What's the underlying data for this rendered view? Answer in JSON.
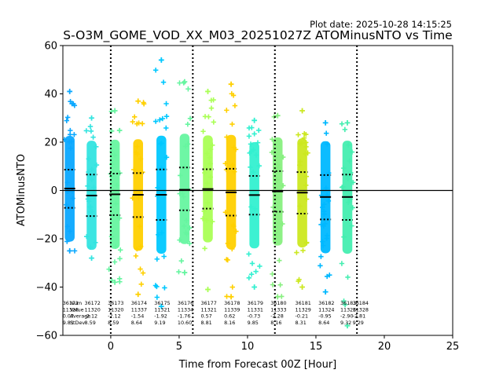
{
  "chart_data": {
    "type": "scatter",
    "title": "S-O3M_GOME_VOD_XX_M03_20251027Z ATOMinusNTO vs Time",
    "plot_date": "Plot date: 2025-10-28 14:15:25",
    "xlabel": "Time from Forecast 00Z [Hour]",
    "ylabel": "ATOMinusNTO",
    "xlim": [
      -3.5,
      25
    ],
    "ylim": [
      -60,
      60
    ],
    "xticks": [
      0,
      5,
      10,
      15,
      20,
      25
    ],
    "yticks": [
      -60,
      -40,
      -20,
      0,
      20,
      40,
      60
    ],
    "xtick_labels": [
      "0",
      "5",
      "10",
      "15",
      "20",
      "25"
    ],
    "ytick_labels": [
      "−60",
      "−40",
      "−20",
      "0",
      "20",
      "40",
      "60"
    ],
    "vlines": [
      0,
      6,
      12,
      18
    ],
    "hline": 0,
    "grid": false,
    "stats_row_labels": [
      "Num",
      "Value",
      "Average",
      "StDev"
    ],
    "bins": [
      {
        "x": -3.0,
        "id": "36171",
        "num": "11328",
        "avg": "0.07",
        "stdev": "9.81",
        "mean": 0.8,
        "sd_hi": 8.6,
        "sd_lo": -7.2,
        "min": -25,
        "max": 41,
        "color": "#0aa8ff"
      },
      {
        "x": -1.4,
        "id": "36172",
        "num": "11320",
        "avg": "-2.12",
        "stdev": "8.59",
        "mean": -2.1,
        "sd_hi": 6.6,
        "sd_lo": -10.6,
        "min": -28,
        "max": 30,
        "color": "#33e4e0"
      },
      {
        "x": 0.3,
        "id": "36173",
        "num": "11320",
        "avg": "-2.12",
        "stdev": "8.59",
        "mean": -1.6,
        "sd_hi": 7.0,
        "sd_lo": -10.2,
        "min": -38,
        "max": 33,
        "color": "#66f5a0"
      },
      {
        "x": 2.0,
        "id": "36174",
        "num": "11337",
        "avg": "-1.54",
        "stdev": "8.64",
        "mean": -1.8,
        "sd_hi": 7.2,
        "sd_lo": -11.0,
        "min": -43,
        "max": 37,
        "color": "#ffd000"
      },
      {
        "x": 3.7,
        "id": "36175",
        "num": "11321",
        "avg": "-1.92",
        "stdev": "9.19",
        "mean": -1.8,
        "sd_hi": 8.7,
        "sd_lo": -12.2,
        "min": -48,
        "max": 54,
        "color": "#00c8ff"
      },
      {
        "x": 5.4,
        "id": "36176",
        "num": "11334",
        "avg": "-1.76",
        "stdev": "10.60",
        "mean": 0.3,
        "sd_hi": 9.5,
        "sd_lo": -8.2,
        "min": -34,
        "max": 45,
        "color": "#66f5a0"
      },
      {
        "x": 7.1,
        "id": "36177",
        "num": "11321",
        "avg": "0.57",
        "stdev": "8.81",
        "mean": 0.6,
        "sd_hi": 8.8,
        "sd_lo": -7.5,
        "min": -41,
        "max": 41,
        "color": "#aaff55"
      },
      {
        "x": 8.8,
        "id": "36178",
        "num": "11339",
        "avg": "0.62",
        "stdev": "8.16",
        "mean": -0.8,
        "sd_hi": 9.0,
        "sd_lo": -10.4,
        "min": -44,
        "max": 44,
        "color": "#ffd000"
      },
      {
        "x": 10.5,
        "id": "36179",
        "num": "11331",
        "avg": "-0.73",
        "stdev": "9.85",
        "mean": -1.9,
        "sd_hi": 6.0,
        "sd_lo": -10.0,
        "min": -40,
        "max": 29,
        "color": "#33f0d0"
      },
      {
        "x": 12.2,
        "id": "36180",
        "num": "11333",
        "avg": "-2.28",
        "stdev": "8.16",
        "mean": -0.4,
        "sd_hi": 8.0,
        "sd_lo": -8.8,
        "min": -44,
        "max": 31,
        "color": "#88f080"
      },
      {
        "x": 14.0,
        "id": "36181",
        "num": "11329",
        "avg": "-0.21",
        "stdev": "8.31",
        "mean": -0.9,
        "sd_hi": 7.6,
        "sd_lo": -9.6,
        "min": -40,
        "max": 33,
        "color": "#cce820"
      },
      {
        "x": 15.7,
        "id": "36182",
        "num": "11324",
        "avg": "-0.95",
        "stdev": "8.64",
        "mean": -2.7,
        "sd_hi": 6.4,
        "sd_lo": -12.0,
        "min": -42,
        "max": 28,
        "color": "#00b8ff"
      },
      {
        "x": 17.3,
        "id": "36183",
        "num": "11326",
        "avg": "-2.90",
        "stdev": "9.32",
        "mean": -2.7,
        "sd_hi": 6.6,
        "sd_lo": -12.2,
        "min": -56,
        "max": 28,
        "color": "#44eeb0"
      },
      {
        "x": 18.2,
        "id": "36184",
        "num": "11328",
        "avg": "-2.81",
        "stdev": "9.29",
        "mean": null,
        "sd_hi": null,
        "sd_lo": null,
        "min": null,
        "max": null,
        "color": "#44eeb0"
      }
    ],
    "bin_width_hours": 0.72,
    "colors": {
      "points": "#22c8ff",
      "mean_line": "#000000",
      "axes": "#000000"
    }
  }
}
